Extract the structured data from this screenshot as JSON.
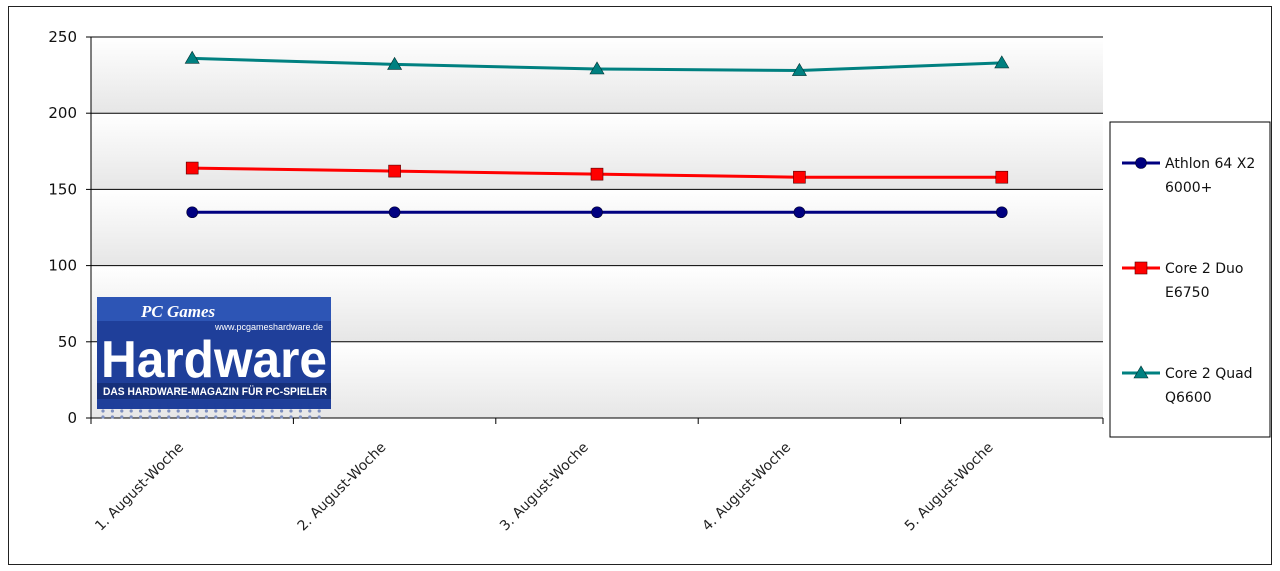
{
  "chart_data": {
    "type": "line",
    "categories": [
      "1. August-Woche",
      "2. August-Woche",
      "3. August-Woche",
      "4. August-Woche",
      "5. August-Woche"
    ],
    "ylim": [
      0,
      250
    ],
    "yticks": [
      0,
      50,
      100,
      150,
      200,
      250
    ],
    "grid": true,
    "legend_position": "right",
    "series": [
      {
        "name": "Athlon 64 X2 6000+",
        "legend_lines": [
          "Athlon 64 X2",
          "6000+"
        ],
        "color": "#000080",
        "marker": "circle",
        "values": [
          135,
          135,
          135,
          135,
          135
        ]
      },
      {
        "name": "Core 2 Duo E6750",
        "legend_lines": [
          "Core 2 Duo",
          "E6750"
        ],
        "color": "#ff0000",
        "marker": "square",
        "values": [
          164,
          162,
          160,
          158,
          158
        ]
      },
      {
        "name": "Core 2 Quad Q6600",
        "legend_lines": [
          "Core 2 Quad",
          "Q6600"
        ],
        "color": "#008080",
        "marker": "triangle",
        "values": [
          236,
          232,
          229,
          228,
          233
        ]
      }
    ]
  },
  "logo": {
    "brand_top": "PC Games",
    "url": "www.pcgameshardware.de",
    "brand_main": "Hardware",
    "tagline": "DAS HARDWARE-MAGAZIN FÜR PC-SPIELER"
  }
}
